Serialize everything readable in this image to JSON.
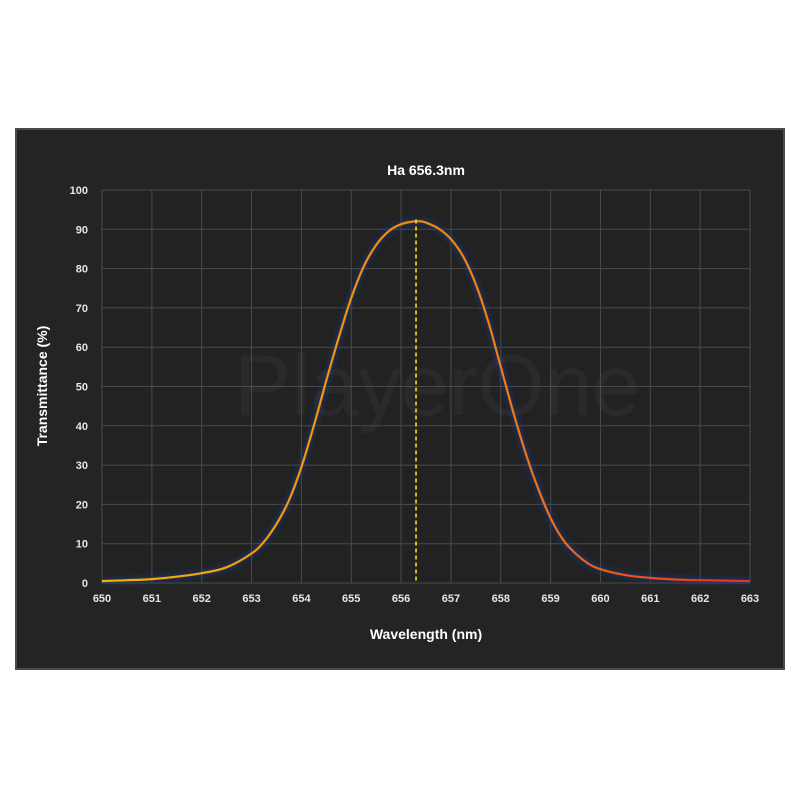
{
  "chart_data": {
    "type": "line",
    "title": "Ha 656.3nm",
    "xlabel": "Wavelength (nm)",
    "ylabel": "Transmittance (%)",
    "xlim": [
      650,
      663
    ],
    "ylim": [
      0,
      100
    ],
    "x_ticks": [
      650,
      651,
      652,
      653,
      654,
      655,
      656,
      657,
      658,
      659,
      660,
      661,
      662,
      663
    ],
    "y_ticks": [
      0,
      10,
      20,
      30,
      40,
      50,
      60,
      70,
      80,
      90,
      100
    ],
    "grid": true,
    "center_marker": {
      "x": 656.3,
      "style": "dashed",
      "color": "#f2e21a"
    },
    "series": [
      {
        "x": [
          650,
          650.5,
          651,
          651.5,
          652,
          652.5,
          653,
          653.25,
          653.5,
          653.75,
          654,
          654.25,
          654.5,
          654.75,
          655,
          655.25,
          655.5,
          655.75,
          656,
          656.25,
          656.4,
          656.5,
          656.75,
          657,
          657.25,
          657.5,
          657.75,
          658,
          658.25,
          658.5,
          658.75,
          659,
          659.25,
          659.5,
          659.75,
          660,
          660.5,
          661,
          661.5,
          662,
          662.5,
          663
        ],
        "y": [
          0.5,
          0.7,
          1.0,
          1.6,
          2.5,
          4.0,
          7.5,
          10.5,
          15.0,
          21.0,
          29.5,
          40.0,
          51.5,
          62.5,
          72.5,
          80.5,
          86.0,
          89.5,
          91.3,
          92.0,
          92.0,
          91.7,
          90.2,
          87.5,
          83.0,
          76.0,
          66.5,
          55.0,
          43.5,
          33.0,
          24.0,
          16.5,
          11.0,
          7.5,
          5.0,
          3.5,
          2.0,
          1.3,
          0.9,
          0.7,
          0.6,
          0.5
        ],
        "colors": [
          "#f5b400",
          "#f07d14",
          "#e8301e"
        ]
      }
    ],
    "watermark": "PlayerOne"
  }
}
